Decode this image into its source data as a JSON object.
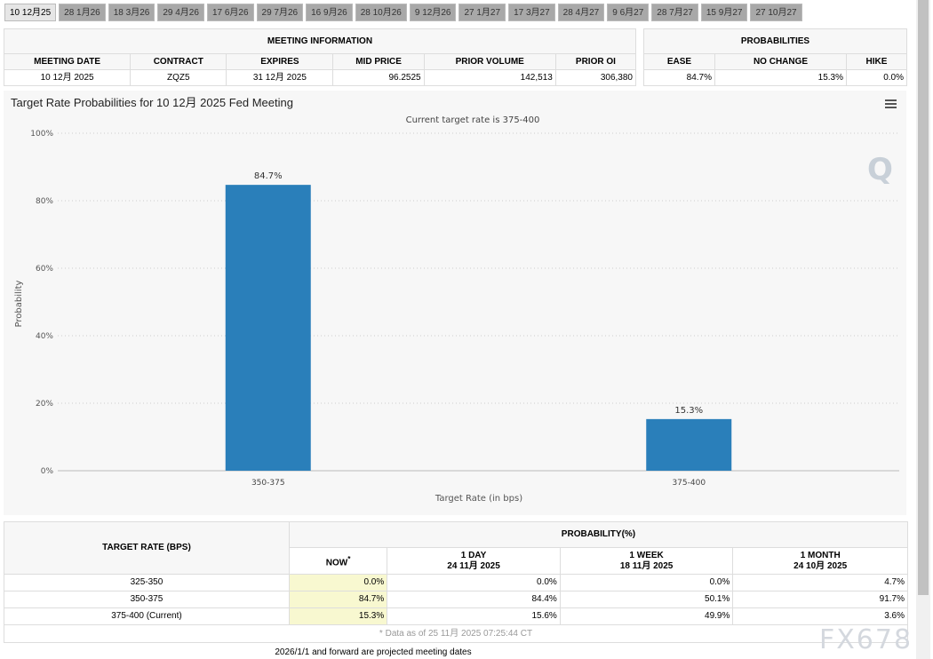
{
  "tabs": [
    "10 12月25",
    "28 1月26",
    "18 3月26",
    "29 4月26",
    "17 6月26",
    "29 7月26",
    "16 9月26",
    "28 10月26",
    "9 12月26",
    "27 1月27",
    "17 3月27",
    "28 4月27",
    "9 6月27",
    "28 7月27",
    "15 9月27",
    "27 10月27"
  ],
  "meeting": {
    "title": "MEETING INFORMATION",
    "headers": [
      "MEETING DATE",
      "CONTRACT",
      "EXPIRES",
      "MID PRICE",
      "PRIOR VOLUME",
      "PRIOR OI"
    ],
    "values": [
      "10 12月 2025",
      "ZQZ5",
      "31 12月 2025",
      "96.2525",
      "142,513",
      "306,380"
    ]
  },
  "probabilities": {
    "title": "PROBABILITIES",
    "headers": [
      "EASE",
      "NO CHANGE",
      "HIKE"
    ],
    "values": [
      "84.7%",
      "15.3%",
      "0.0%"
    ]
  },
  "chart_data": {
    "type": "bar",
    "title": "Target Rate Probabilities for 10 12月 2025 Fed Meeting",
    "subtitle": "Current target rate is 375-400",
    "xlabel": "Target Rate (in bps)",
    "ylabel": "Probability",
    "categories": [
      "350-375",
      "375-400"
    ],
    "values": [
      84.7,
      15.3
    ],
    "data_labels": [
      "84.7%",
      "15.3%"
    ],
    "ylim": [
      0,
      100
    ],
    "yticks": [
      "0%",
      "20%",
      "40%",
      "60%",
      "80%",
      "100%"
    ],
    "grid": true,
    "bar_color": "#2a7fba"
  },
  "prob_table": {
    "target_header": "TARGET RATE (BPS)",
    "prob_header": "PROBABILITY(%)",
    "cols": [
      {
        "l1": "NOW",
        "l2": ""
      },
      {
        "l1": "1 DAY",
        "l2": "24 11月 2025"
      },
      {
        "l1": "1 WEEK",
        "l2": "18 11月 2025"
      },
      {
        "l1": "1 MONTH",
        "l2": "24 10月 2025"
      }
    ],
    "now_mark": "*",
    "rows": [
      {
        "rate": "325-350",
        "v": [
          "0.0%",
          "0.0%",
          "0.0%",
          "4.7%"
        ]
      },
      {
        "rate": "350-375",
        "v": [
          "84.7%",
          "84.4%",
          "50.1%",
          "91.7%"
        ]
      },
      {
        "rate": "375-400 (Current)",
        "v": [
          "15.3%",
          "15.6%",
          "49.9%",
          "3.6%"
        ]
      }
    ],
    "note": "* Data as of 25 11月 2025 07:25:44 CT"
  },
  "footer": "2026/1/1 and forward are projected meeting dates",
  "watermark": "FX678"
}
